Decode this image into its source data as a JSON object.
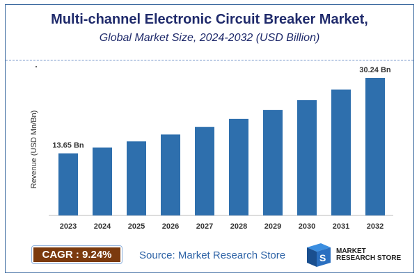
{
  "chart_data": {
    "type": "bar",
    "title": "Multi-channel Electronic Circuit Breaker Market,",
    "subtitle": "Global Market Size, 2024-2032 (USD Billion)",
    "xlabel": "",
    "ylabel": "Revenue (USD Mn/Bn)",
    "categories": [
      "2023",
      "2024",
      "2025",
      "2026",
      "2027",
      "2028",
      "2029",
      "2030",
      "2031",
      "2032"
    ],
    "values": [
      13.65,
      14.91,
      16.29,
      17.8,
      19.44,
      21.24,
      23.2,
      25.34,
      27.68,
      30.24
    ],
    "data_labels": {
      "first": "13.65 Bn",
      "last": "30.24 Bn"
    },
    "ylim": [
      0,
      32
    ],
    "grid": false,
    "bar_color": "#2e6fad"
  },
  "footer": {
    "cagr": "CAGR : 9.24%",
    "source": "Source: Market Research Store",
    "logo_text": "MARKET RESEARCH STORE",
    "cagr_color": "#7b3a0e"
  }
}
